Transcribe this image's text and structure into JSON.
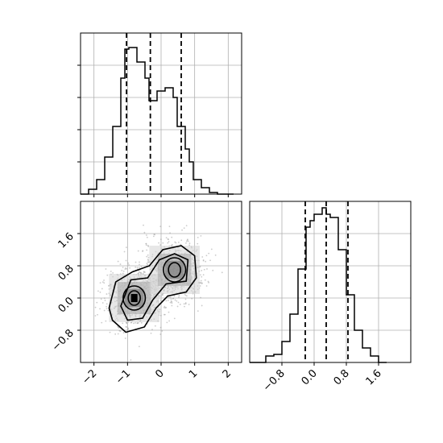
{
  "chart_data": [
    {
      "panel": "top-left",
      "type": "histogram",
      "x_range": [
        -2.4,
        2.4
      ],
      "y_range": [
        0,
        1.0
      ],
      "grid": true,
      "bins": [
        -2.4,
        -2.16,
        -1.92,
        -1.68,
        -1.44,
        -1.2,
        -1.08,
        -0.96,
        -0.84,
        -0.72,
        -0.6,
        -0.48,
        -0.36,
        -0.24,
        -0.12,
        0.0,
        0.12,
        0.24,
        0.36,
        0.48,
        0.6,
        0.72,
        0.84,
        0.96,
        1.2,
        1.44,
        1.68,
        1.92,
        2.16
      ],
      "values": [
        0.0,
        0.03,
        0.09,
        0.23,
        0.42,
        0.72,
        0.9,
        0.91,
        0.91,
        0.82,
        0.82,
        0.72,
        0.58,
        0.58,
        0.64,
        0.64,
        0.66,
        0.66,
        0.6,
        0.42,
        0.42,
        0.28,
        0.2,
        0.09,
        0.04,
        0.01,
        0.0,
        0.0
      ],
      "quantile_lines": [
        -1.03,
        -0.32,
        0.6
      ],
      "xticks_visible": [
        -2,
        -1,
        0,
        1,
        2
      ],
      "yticks_visible": []
    },
    {
      "panel": "bottom-left",
      "type": "density_contour",
      "x_range": [
        -2.4,
        2.4
      ],
      "y_range": [
        -1.6,
        2.4
      ],
      "grid": true,
      "xticks": [
        -2,
        -1,
        0,
        1,
        2
      ],
      "xtick_labels": [
        "−2",
        "−1",
        "0",
        "1",
        "2"
      ],
      "yticks": [
        -0.8,
        0.0,
        0.8,
        1.6
      ],
      "ytick_labels": [
        "−0.8",
        "0.0",
        "0.8",
        "1.6"
      ],
      "modes": [
        [
          -0.8,
          0.0
        ],
        [
          0.4,
          0.7
        ]
      ]
    },
    {
      "panel": "bottom-right",
      "type": "histogram",
      "x_range": [
        -1.6,
        2.4
      ],
      "y_range": [
        0,
        1.0
      ],
      "grid": true,
      "bins": [
        -1.6,
        -1.2,
        -1.0,
        -0.8,
        -0.6,
        -0.4,
        -0.2,
        -0.1,
        0.0,
        0.2,
        0.3,
        0.4,
        0.6,
        0.8,
        1.0,
        1.2,
        1.4,
        1.6,
        1.8
      ],
      "values": [
        0.0,
        0.04,
        0.05,
        0.13,
        0.3,
        0.58,
        0.84,
        0.88,
        0.92,
        0.96,
        0.92,
        0.9,
        0.7,
        0.42,
        0.2,
        0.09,
        0.04,
        0.0
      ],
      "quantile_lines": [
        -0.22,
        0.3,
        0.84
      ],
      "xticks": [
        -0.8,
        0.0,
        0.8,
        1.6
      ],
      "xtick_labels": [
        "−0.8",
        "0.0",
        "0.8",
        "1.6"
      ]
    }
  ]
}
